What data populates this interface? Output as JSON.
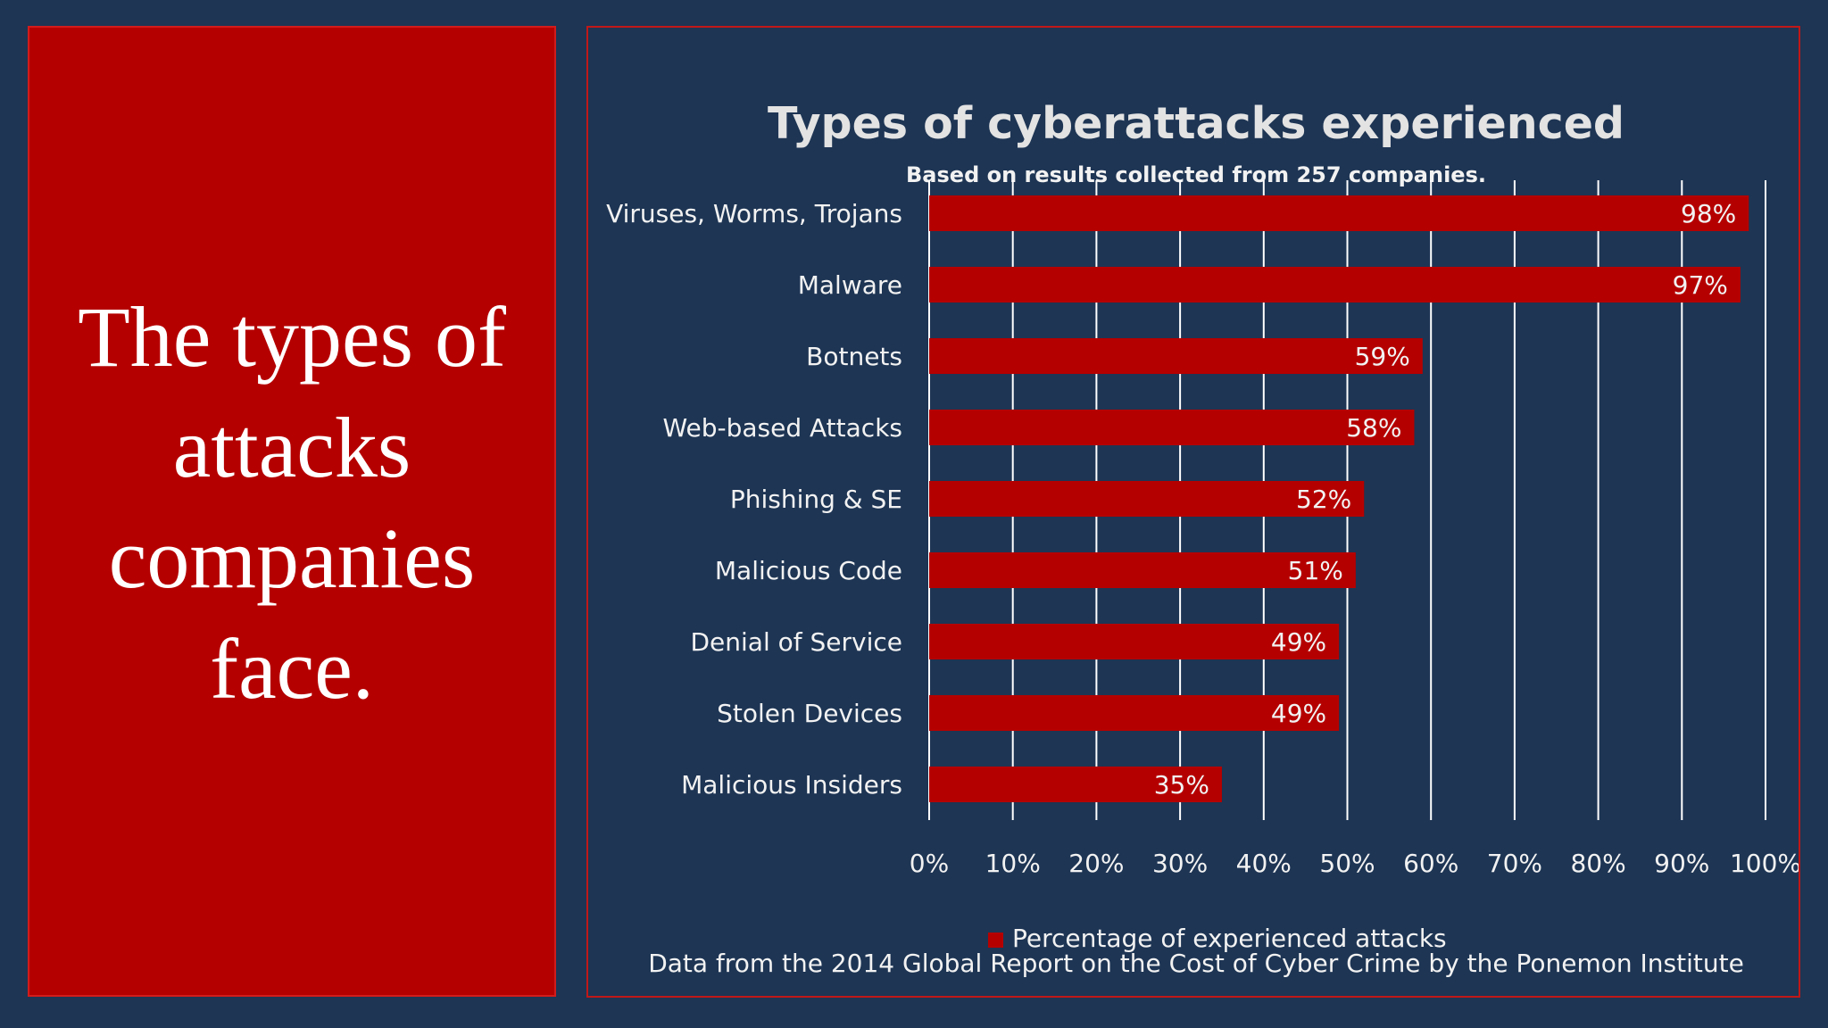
{
  "slide": {
    "heading": "The types of attacks companies face."
  },
  "colors": {
    "background": "#1e3554",
    "accent_red": "#b50000",
    "panel_border": "#c01818",
    "text_light": "#f2f2f2",
    "title_gray": "#e3e3e3",
    "gridline": "#ffffff"
  },
  "chart_data": {
    "type": "bar",
    "orientation": "horizontal",
    "title": "Types of cyberattacks experienced",
    "subtitle": "Based on results collected from 257 companies.",
    "categories": [
      "Viruses, Worms, Trojans",
      "Malware",
      "Botnets",
      "Web-based Attacks",
      "Phishing & SE",
      "Malicious Code",
      "Denial of Service",
      "Stolen Devices",
      "Malicious Insiders"
    ],
    "series": [
      {
        "name": "Percentage of experienced attacks",
        "values": [
          98,
          97,
          59,
          58,
          52,
          51,
          49,
          49,
          35
        ],
        "data_labels": [
          "98%",
          "97%",
          "59%",
          "58%",
          "52%",
          "51%",
          "49%",
          "49%",
          "35%"
        ],
        "color": "#b50000"
      }
    ],
    "xlim": [
      0,
      100
    ],
    "xticks": [
      "0%",
      "10%",
      "20%",
      "30%",
      "40%",
      "50%",
      "60%",
      "70%",
      "80%",
      "90%",
      "100%"
    ],
    "grid": true,
    "legend_position": "bottom",
    "source_note": "Data from the 2014 Global Report on the Cost of Cyber Crime by the Ponemon Institute"
  }
}
